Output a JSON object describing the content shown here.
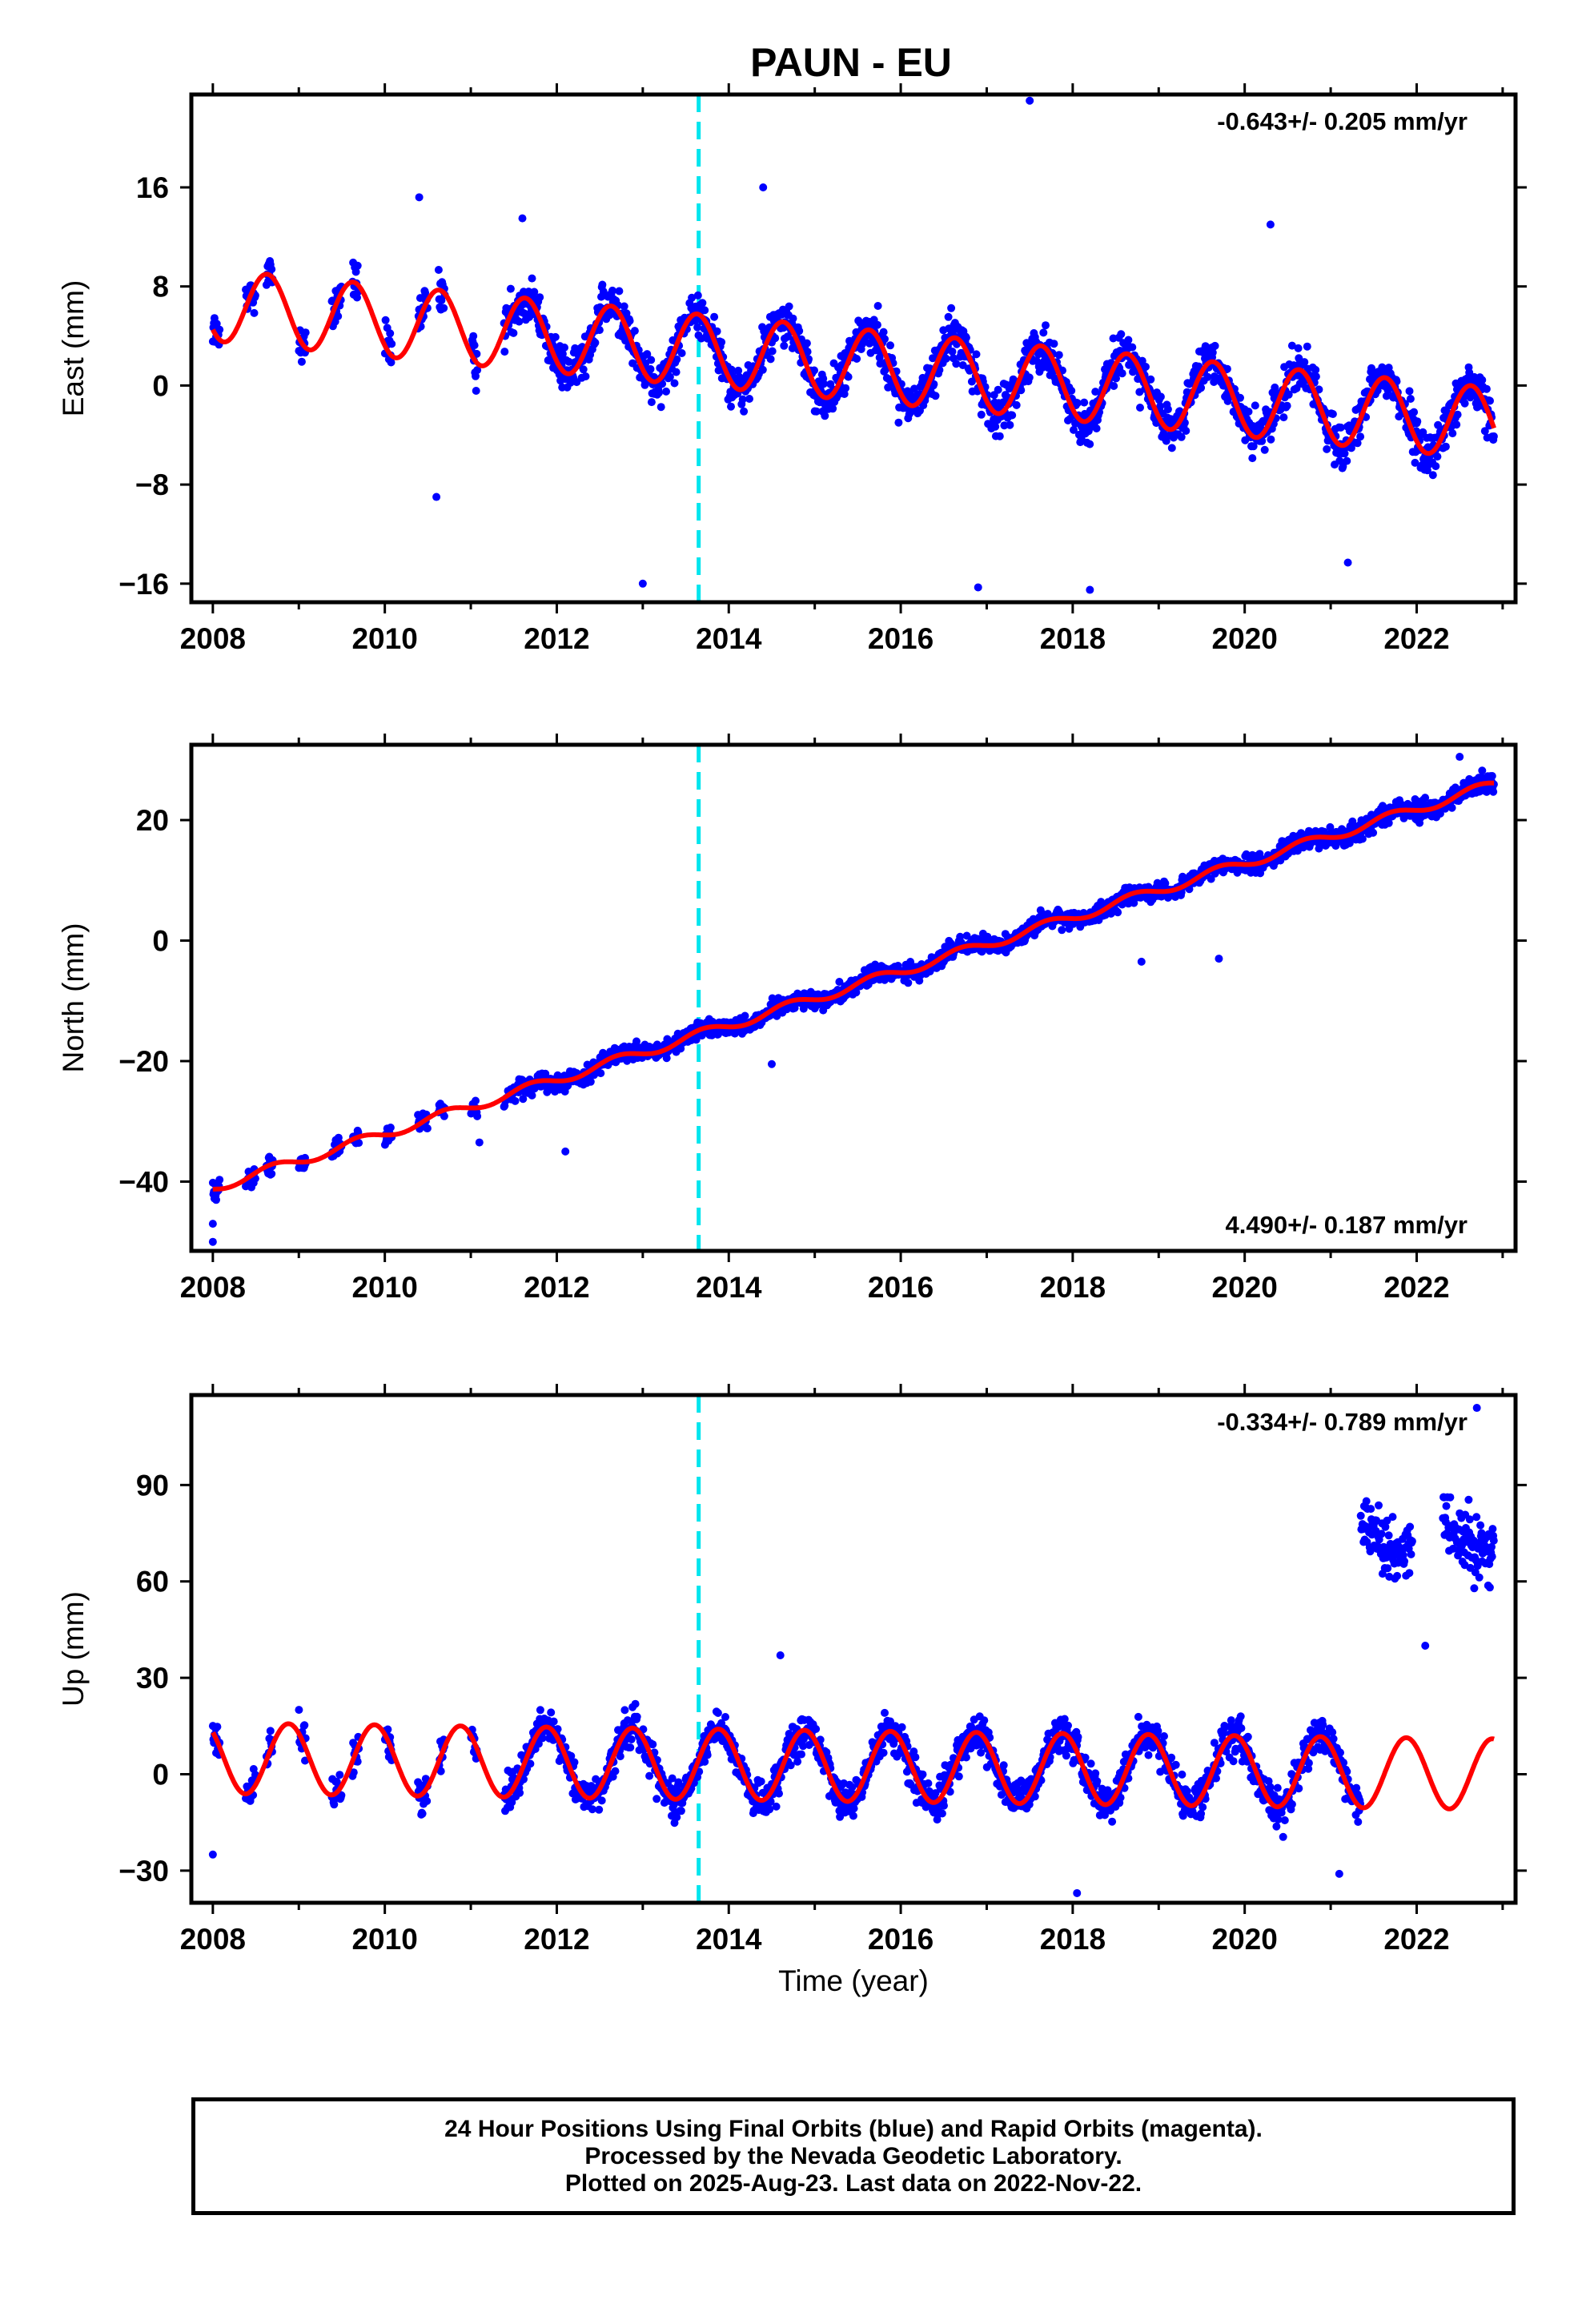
{
  "title": "PAUN - EU",
  "colors": {
    "data": "#0000ff",
    "model": "#ff0000",
    "event": "#00e5ee",
    "frame": "#000000"
  },
  "chart_data": [
    {
      "type": "scatter",
      "ylabel": "East (mm)",
      "xlim": [
        2007.75,
        2023.15
      ],
      "ylim": [
        -17.5,
        23.5
      ],
      "yticks": [
        -16,
        -8,
        0,
        8,
        16
      ],
      "xticks": [
        2008,
        2010,
        2012,
        2014,
        2016,
        2018,
        2020,
        2022
      ],
      "event_line_x": 2013.65,
      "rate": "-0.643+/- 0.205 mm/yr",
      "rate_position": "top-right",
      "model": {
        "offset": 6.5,
        "trend": -0.643,
        "amplitude": 2.9,
        "phase_year": 0.38,
        "start": 2008.0,
        "end": 2022.9
      },
      "data_scatter": 1.8,
      "outliers": [
        [
          2017.5,
          23.0
        ],
        [
          2014.4,
          16.0
        ],
        [
          2010.4,
          15.2
        ],
        [
          2011.6,
          13.5
        ],
        [
          2020.3,
          13.0
        ],
        [
          2013.0,
          -16.0
        ],
        [
          2016.9,
          -16.3
        ],
        [
          2018.2,
          -16.5
        ],
        [
          2021.2,
          -14.3
        ],
        [
          2010.6,
          -9.0
        ]
      ]
    },
    {
      "type": "scatter",
      "ylabel": "North (mm)",
      "xlim": [
        2007.75,
        2023.15
      ],
      "ylim": [
        -51.5,
        32.5
      ],
      "yticks": [
        -40,
        -20,
        0,
        20
      ],
      "xticks": [
        2008,
        2010,
        2012,
        2014,
        2016,
        2018,
        2020,
        2022
      ],
      "event_line_x": 2013.65,
      "rate": "4.490+/- 0.187 mm/yr",
      "rate_position": "bottom-right",
      "model": {
        "offset": -41.0,
        "trend": 4.49,
        "amplitude": 0.8,
        "phase_year": 0.45,
        "start": 2008.0,
        "end": 2022.9
      },
      "data_scatter": 1.5,
      "outliers": [
        [
          2008.0,
          -50.0
        ],
        [
          2008.0,
          -47.0
        ],
        [
          2011.1,
          -33.5
        ],
        [
          2012.1,
          -35.0
        ],
        [
          2014.5,
          -20.5
        ],
        [
          2018.8,
          -3.5
        ],
        [
          2019.7,
          -3.0
        ],
        [
          2022.5,
          30.5
        ]
      ]
    },
    {
      "type": "scatter",
      "ylabel": "Up (mm)",
      "xlim": [
        2007.75,
        2023.15
      ],
      "ylim": [
        -40,
        118
      ],
      "yticks": [
        -30,
        0,
        30,
        60,
        90
      ],
      "xticks": [
        2008,
        2010,
        2012,
        2014,
        2016,
        2018,
        2020,
        2022
      ],
      "event_line_x": 2013.65,
      "rate": "-0.334+/- 0.789 mm/yr",
      "rate_position": "top-right",
      "xlabel": "Time (year)",
      "model": {
        "offset": 5.0,
        "trend": -0.334,
        "amplitude": 11.0,
        "phase_year": 0.63,
        "start": 2008.0,
        "end": 2022.9
      },
      "data_scatter": 6.0,
      "data_end": 2021.35,
      "later_cluster": {
        "start": 2021.35,
        "end": 2022.9,
        "center": 75,
        "spread": 10
      },
      "outliers": [
        [
          2014.6,
          37
        ],
        [
          2018.05,
          -37
        ],
        [
          2021.1,
          -31
        ],
        [
          2022.1,
          40
        ],
        [
          2022.7,
          114
        ],
        [
          2008.0,
          -25
        ]
      ]
    }
  ],
  "footer": {
    "line1": "24 Hour Positions Using Final Orbits (blue) and Rapid Orbits (magenta).",
    "line2": "Processed by the Nevada Geodetic Laboratory.",
    "line3": "Plotted on 2025-Aug-23. Last data on 2022-Nov-22."
  }
}
